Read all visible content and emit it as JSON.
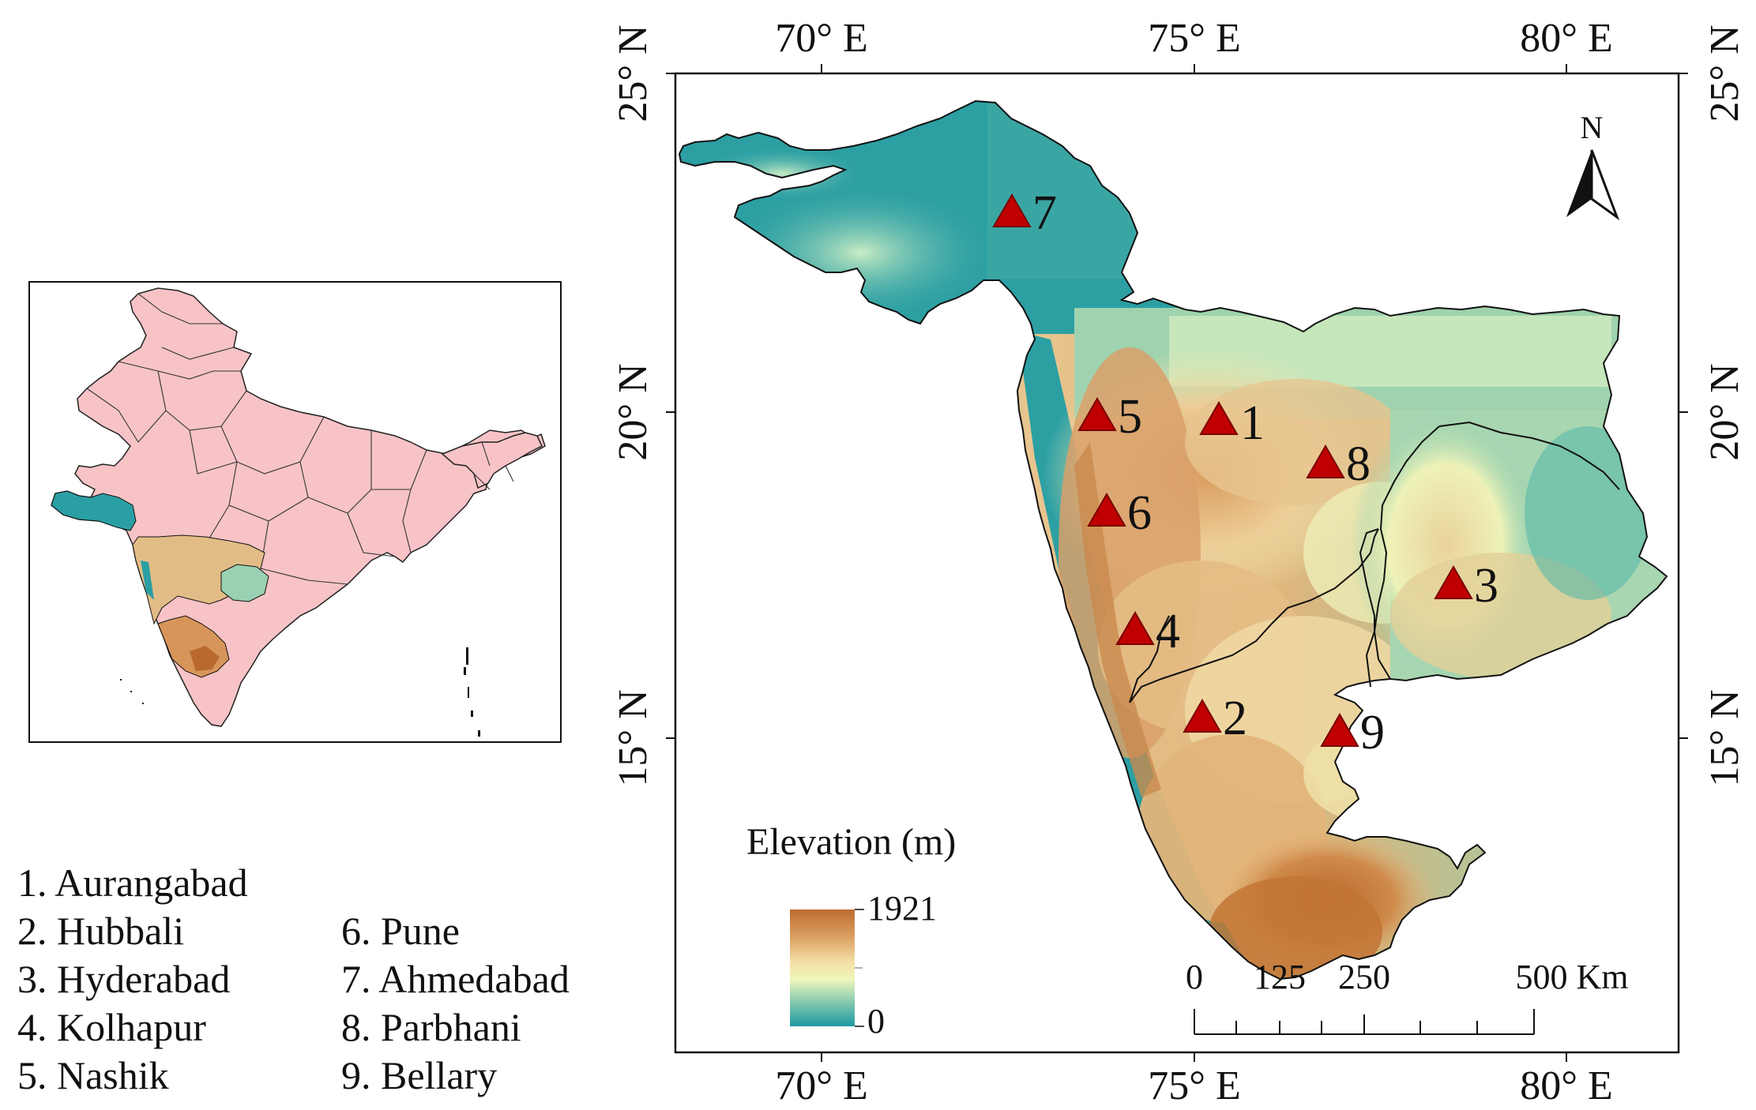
{
  "axes": {
    "top_lon": [
      "70° E",
      "75° E",
      "80° E"
    ],
    "bottom_lon": [
      "70° E",
      "75° E",
      "80° E"
    ],
    "left_lat": [
      "25° N",
      "20° N",
      "15° N"
    ],
    "right_lat": [
      "25° N",
      "20° N",
      "15° N"
    ]
  },
  "north_arrow": {
    "label": "N"
  },
  "legend": {
    "title": "Elevation (m)",
    "max_value": "1921",
    "min_value": "0",
    "colors": [
      "#c06a2e",
      "#dba060",
      "#f3dca3",
      "#f0f5b8",
      "#9fd3b0",
      "#1d9aa2"
    ]
  },
  "scale_bar": {
    "labels": [
      "0",
      "125",
      "250",
      "500 Km"
    ]
  },
  "stations": [
    {
      "number": "1",
      "name": "Aurangabad"
    },
    {
      "number": "2",
      "name": "Hubbali"
    },
    {
      "number": "3",
      "name": "Hyderabad"
    },
    {
      "number": "4",
      "name": "Kolhapur"
    },
    {
      "number": "5",
      "name": "Nashik"
    },
    {
      "number": "6",
      "name": "Pune"
    },
    {
      "number": "7",
      "name": "Ahmedabad"
    },
    {
      "number": "8",
      "name": "Parbhani"
    },
    {
      "number": "9",
      "name": "Bellary"
    }
  ],
  "station_list": [
    "1. Aurangabad",
    "2. Hubbali",
    "3. Hyderabad",
    "4. Kolhapur",
    "5. Nashik",
    "6. Pune",
    "7. Ahmedabad",
    "8. Parbhani",
    "9. Bellary"
  ],
  "colors": {
    "marker": "#c00000",
    "india_fill": "#f7c3c6",
    "low_elev": "#1d9aa2",
    "high_elev": "#c06a2e"
  }
}
